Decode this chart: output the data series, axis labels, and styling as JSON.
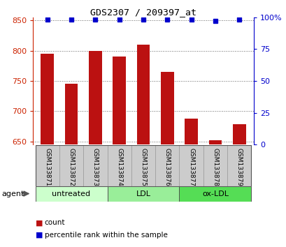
{
  "title": "GDS2307 / 209397_at",
  "samples": [
    "GSM133871",
    "GSM133872",
    "GSM133873",
    "GSM133874",
    "GSM133875",
    "GSM133876",
    "GSM133877",
    "GSM133878",
    "GSM133879"
  ],
  "counts": [
    795,
    745,
    800,
    790,
    810,
    765,
    688,
    652,
    678
  ],
  "percentiles": [
    98,
    98,
    98,
    98,
    98,
    98,
    98,
    97,
    98
  ],
  "groups": [
    {
      "label": "untreated",
      "samples": [
        0,
        1,
        2
      ],
      "color": "#ccffcc"
    },
    {
      "label": "LDL",
      "samples": [
        3,
        4,
        5
      ],
      "color": "#99ee99"
    },
    {
      "label": "ox-LDL",
      "samples": [
        6,
        7,
        8
      ],
      "color": "#55dd55"
    }
  ],
  "ylim_left": [
    645,
    855
  ],
  "yticks_left": [
    650,
    700,
    750,
    800,
    850
  ],
  "ylim_right": [
    0,
    100
  ],
  "yticks_right": [
    0,
    25,
    50,
    75,
    100
  ],
  "bar_color": "#bb1111",
  "dot_color": "#0000cc",
  "bar_bottom": 645,
  "bar_width": 0.55,
  "left_axis_color": "#cc2200",
  "right_axis_color": "#0000cc",
  "grid_color": "#666666",
  "sample_box_color": "#cccccc",
  "sample_box_edge": "#999999",
  "legend_count_color": "#bb1111",
  "legend_pct_color": "#0000cc",
  "dot_size": 5,
  "agent_arrow_color": "#555555"
}
